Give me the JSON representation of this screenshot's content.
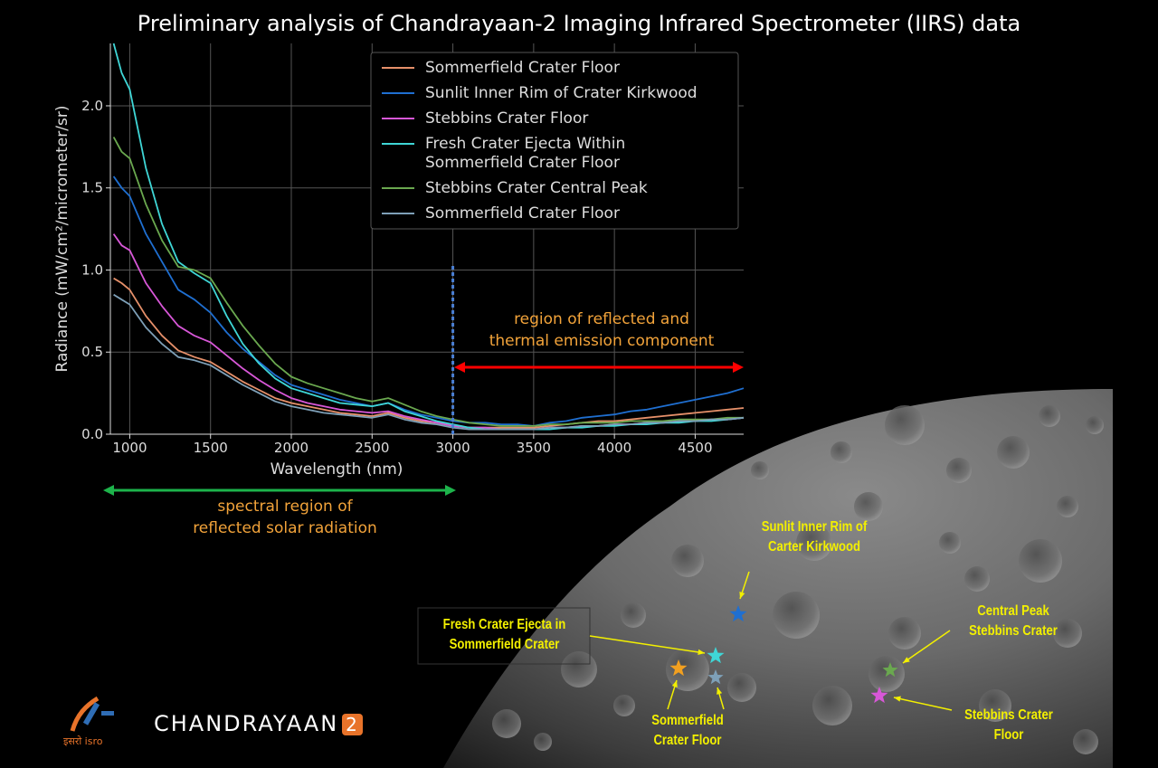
{
  "title": "Preliminary analysis of Chandrayaan-2 Imaging Infrared Spectrometer (IIRS) data",
  "chart_data": {
    "type": "line",
    "xlabel": "Wavelength (nm)",
    "ylabel": "Radiance (mW/cm²/micrometer/sr)",
    "xlim": [
      880,
      4800
    ],
    "ylim": [
      0,
      2.38
    ],
    "xticks": [
      1000,
      1500,
      2000,
      2500,
      3000,
      3500,
      4000,
      4500
    ],
    "yticks": [
      0.0,
      0.5,
      1.0,
      1.5,
      2.0
    ],
    "grid": true,
    "legend_position": "top-right",
    "x": [
      900,
      950,
      1000,
      1100,
      1200,
      1300,
      1400,
      1500,
      1600,
      1700,
      1800,
      1900,
      2000,
      2100,
      2200,
      2300,
      2400,
      2500,
      2600,
      2700,
      2800,
      2900,
      3000,
      3100,
      3200,
      3300,
      3400,
      3500,
      3600,
      3700,
      3800,
      3900,
      4000,
      4100,
      4200,
      4300,
      4400,
      4500,
      4600,
      4700,
      4800
    ],
    "series": [
      {
        "name": "Sommerfield Crater Floor",
        "color": "#e6906a",
        "values": [
          0.95,
          0.92,
          0.88,
          0.72,
          0.6,
          0.51,
          0.47,
          0.44,
          0.38,
          0.32,
          0.27,
          0.22,
          0.19,
          0.17,
          0.15,
          0.13,
          0.12,
          0.11,
          0.13,
          0.1,
          0.08,
          0.07,
          0.05,
          0.04,
          0.04,
          0.04,
          0.04,
          0.04,
          0.05,
          0.06,
          0.07,
          0.08,
          0.08,
          0.09,
          0.1,
          0.11,
          0.12,
          0.13,
          0.14,
          0.15,
          0.16
        ]
      },
      {
        "name": "Sunlit Inner Rim of Crater Kirkwood",
        "color": "#1f6fd1",
        "values": [
          1.57,
          1.5,
          1.45,
          1.22,
          1.05,
          0.88,
          0.82,
          0.74,
          0.62,
          0.52,
          0.44,
          0.36,
          0.3,
          0.27,
          0.24,
          0.21,
          0.19,
          0.17,
          0.19,
          0.15,
          0.12,
          0.1,
          0.08,
          0.07,
          0.07,
          0.06,
          0.06,
          0.05,
          0.07,
          0.08,
          0.1,
          0.11,
          0.12,
          0.14,
          0.15,
          0.17,
          0.19,
          0.21,
          0.23,
          0.25,
          0.28
        ]
      },
      {
        "name": "Stebbins Crater Floor",
        "color": "#d857d8",
        "values": [
          1.22,
          1.15,
          1.12,
          0.92,
          0.78,
          0.66,
          0.6,
          0.56,
          0.48,
          0.4,
          0.33,
          0.27,
          0.22,
          0.19,
          0.17,
          0.15,
          0.14,
          0.13,
          0.14,
          0.11,
          0.09,
          0.07,
          0.05,
          0.04,
          0.04,
          0.03,
          0.03,
          0.03,
          0.04,
          0.04,
          0.05,
          0.05,
          0.06,
          0.06,
          0.07,
          0.07,
          0.08,
          0.08,
          0.09,
          0.09,
          0.1
        ]
      },
      {
        "name": "Fresh Crater Ejecta Within Sommerfield Crater Floor",
        "color": "#3fd6d6",
        "values": [
          2.38,
          2.2,
          2.1,
          1.62,
          1.28,
          1.05,
          0.98,
          0.92,
          0.72,
          0.55,
          0.43,
          0.34,
          0.28,
          0.25,
          0.22,
          0.19,
          0.18,
          0.17,
          0.19,
          0.14,
          0.11,
          0.08,
          0.06,
          0.04,
          0.03,
          0.03,
          0.03,
          0.03,
          0.03,
          0.04,
          0.04,
          0.05,
          0.05,
          0.06,
          0.06,
          0.07,
          0.07,
          0.08,
          0.08,
          0.09,
          0.1
        ]
      },
      {
        "name": "Stebbins Crater Central Peak",
        "color": "#6aa84f",
        "values": [
          1.81,
          1.72,
          1.68,
          1.4,
          1.18,
          1.02,
          1.0,
          0.95,
          0.8,
          0.66,
          0.54,
          0.43,
          0.35,
          0.31,
          0.28,
          0.25,
          0.22,
          0.2,
          0.22,
          0.18,
          0.14,
          0.11,
          0.09,
          0.07,
          0.06,
          0.05,
          0.05,
          0.05,
          0.06,
          0.06,
          0.07,
          0.07,
          0.07,
          0.08,
          0.08,
          0.08,
          0.09,
          0.09,
          0.09,
          0.1,
          0.1
        ]
      },
      {
        "name": "Sommerfield Crater Floor",
        "color": "#7ea0b8",
        "values": [
          0.85,
          0.82,
          0.79,
          0.65,
          0.55,
          0.47,
          0.45,
          0.42,
          0.36,
          0.3,
          0.25,
          0.2,
          0.17,
          0.15,
          0.13,
          0.12,
          0.11,
          0.1,
          0.12,
          0.09,
          0.07,
          0.06,
          0.04,
          0.03,
          0.03,
          0.03,
          0.03,
          0.03,
          0.04,
          0.04,
          0.05,
          0.05,
          0.06,
          0.06,
          0.07,
          0.07,
          0.08,
          0.08,
          0.09,
          0.09,
          0.1
        ]
      }
    ],
    "legend_labels": [
      [
        "Sommerfield Crater Floor"
      ],
      [
        "Sunlit Inner Rim of Crater Kirkwood"
      ],
      [
        "Stebbins Crater Floor"
      ],
      [
        "Fresh Crater Ejecta Within",
        "Sommerfield Crater Floor"
      ],
      [
        "Stebbins Crater Central Peak"
      ],
      [
        "Sommerfield Crater Floor"
      ]
    ],
    "divider_x": 3000
  },
  "annotations": {
    "thermal_line1": "region of reflected and",
    "thermal_line2": "thermal emission component",
    "solar_line1": "spectral region of",
    "solar_line2": "reflected solar radiation",
    "thermal_arrow_color": "#ff0000",
    "solar_arrow_color": "#1db34b"
  },
  "map_labels": {
    "kirkwood_1": "Sunlit Inner Rim of",
    "kirkwood_2": "Carter Kirkwood",
    "ejecta_1": "Fresh Crater Ejecta in",
    "ejecta_2": "Sommerfield Crater",
    "peak_1": "Central Peak",
    "peak_2": "Stebbins Crater",
    "sfloor_1": "Sommerfield",
    "sfloor_2": "Crater Floor",
    "stfloor_1": "Stebbins Crater",
    "stfloor_2": "Floor"
  },
  "logo": {
    "mission": "CHANDRAYAAN",
    "mission_number": "2",
    "agency": "इसरो isro"
  }
}
